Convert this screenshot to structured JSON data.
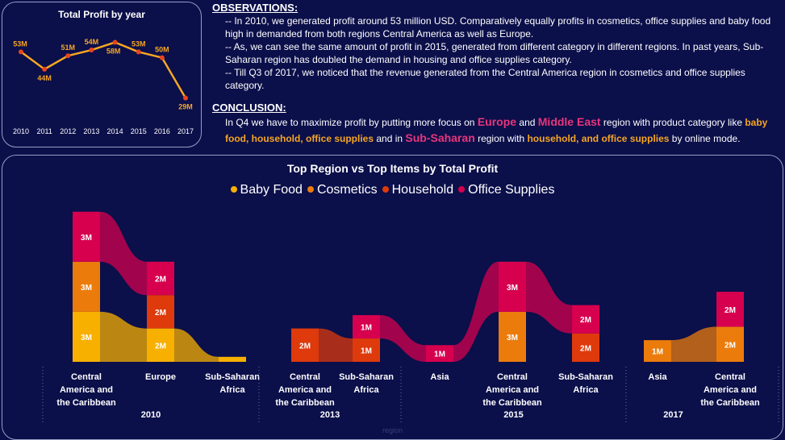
{
  "line_chart": {
    "title": "Total Profit by year"
  },
  "observations": {
    "heading": "OBSERVATIONS:",
    "items": [
      "-- In 2010, we generated profit around 53 million USD.  Comparatively equally profits in cosmetics, office supplies and baby food high in demanded from both regions Central America as well as Europe.",
      "-- As, we can see the same amount of profit in 2015, generated from different category in different regions. In past years, Sub-Saharan region has doubled the demand in housing and office supplies category.",
      "-- Till Q3 of 2017, we noticed that the revenue generated from the Central America region in cosmetics and office supplies category."
    ]
  },
  "conclusion": {
    "heading": "CONCLUSION:",
    "part1": "In Q4 we have to maximize profit by putting more focus on ",
    "europe": "Europe",
    "and1": " and ",
    "middle_east": "Middle East",
    "part2": " region with product category like ",
    "categories1": "baby food, household, office supplies",
    "part3": " and in ",
    "sub_saharan": "Sub-Saharan",
    "part4": " region with ",
    "categories2": "household, and office supplies",
    "part5": " by online mode."
  },
  "ribbon_chart": {
    "title": "Top Region vs Top Items by Total Profit",
    "axis_title": "region"
  },
  "colors": {
    "background": "#0b0f4a",
    "line": "#f5a623",
    "marker": "#e8451f",
    "baby_food": "#f7b000",
    "cosmetics": "#eb7c0c",
    "household": "#de3a0c",
    "office_supplies": "#d6004f"
  },
  "chart_data": [
    {
      "type": "line",
      "title": "Total Profit by year",
      "x": [
        "2010",
        "2011",
        "2012",
        "2013",
        "2014",
        "2015",
        "2016",
        "2017"
      ],
      "values": [
        53,
        44,
        51,
        54,
        58,
        53,
        50,
        29
      ],
      "labels": [
        "53M",
        "44M",
        "51M",
        "54M",
        "58M",
        "53M",
        "50M",
        "29M"
      ],
      "ylim": [
        20,
        62
      ],
      "grid": false
    },
    {
      "type": "bar",
      "subtype": "ribbon",
      "title": "Top Region vs Top Items by Total Profit",
      "xlabel": "region",
      "legend_position": "top-center",
      "series_names": [
        "Baby Food",
        "Cosmetics",
        "Household",
        "Office Supplies"
      ],
      "groups": [
        {
          "year": "2010",
          "columns": [
            {
              "region": "Central America and the Caribbean",
              "stack": [
                {
                  "series": "Baby Food",
                  "value": 3,
                  "label": "3M"
                },
                {
                  "series": "Cosmetics",
                  "value": 3,
                  "label": "3M"
                },
                {
                  "series": "Office Supplies",
                  "value": 3,
                  "label": "3M"
                }
              ]
            },
            {
              "region": "Europe",
              "stack": [
                {
                  "series": "Baby Food",
                  "value": 2,
                  "label": "2M"
                },
                {
                  "series": "Household",
                  "value": 2,
                  "label": "2M"
                },
                {
                  "series": "Office Supplies",
                  "value": 2,
                  "label": "2M"
                }
              ]
            },
            {
              "region": "Sub-Saharan Africa",
              "stack": [
                {
                  "series": "Baby Food",
                  "value": 0.3,
                  "label": ""
                }
              ]
            }
          ]
        },
        {
          "year": "2013",
          "columns": [
            {
              "region": "Central America and the Caribbean",
              "stack": [
                {
                  "series": "Household",
                  "value": 2,
                  "label": "2M"
                }
              ]
            },
            {
              "region": "Sub-Saharan Africa",
              "stack": [
                {
                  "series": "Household",
                  "value": 1.4,
                  "label": "1M"
                },
                {
                  "series": "Office Supplies",
                  "value": 1.4,
                  "label": "1M"
                }
              ]
            }
          ]
        },
        {
          "year": "2015",
          "columns": [
            {
              "region": "Asia",
              "stack": [
                {
                  "series": "Office Supplies",
                  "value": 1,
                  "label": "1M"
                }
              ]
            },
            {
              "region": "Central America and the Caribbean",
              "stack": [
                {
                  "series": "Cosmetics",
                  "value": 3,
                  "label": "3M"
                },
                {
                  "series": "Office Supplies",
                  "value": 3,
                  "label": "3M"
                }
              ]
            },
            {
              "region": "Sub-Saharan Africa",
              "stack": [
                {
                  "series": "Household",
                  "value": 1.7,
                  "label": "2M"
                },
                {
                  "series": "Office Supplies",
                  "value": 1.7,
                  "label": "2M"
                }
              ]
            }
          ]
        },
        {
          "year": "2017",
          "columns": [
            {
              "region": "Asia",
              "stack": [
                {
                  "series": "Cosmetics",
                  "value": 1.3,
                  "label": "1M"
                }
              ]
            },
            {
              "region": "Central America and the Caribbean",
              "stack": [
                {
                  "series": "Cosmetics",
                  "value": 2.1,
                  "label": "2M"
                },
                {
                  "series": "Office Supplies",
                  "value": 2.1,
                  "label": "2M"
                }
              ]
            }
          ]
        }
      ]
    }
  ]
}
